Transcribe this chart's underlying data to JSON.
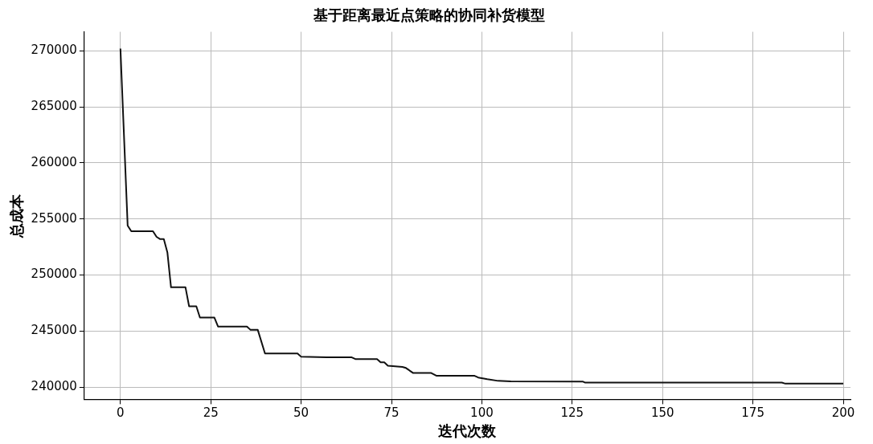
{
  "chart_data": {
    "type": "line",
    "title": "基于距离最近点策略的协同补货模型",
    "xlabel": "迭代次数",
    "ylabel": "总成本",
    "series": [
      {
        "color": "#111111",
        "x": [
          0,
          2,
          3,
          9,
          10,
          11,
          12,
          13,
          14,
          18,
          19,
          21,
          22,
          26,
          27,
          35,
          36,
          38,
          40,
          49,
          50,
          57,
          64,
          65,
          71,
          72,
          73,
          74,
          78,
          79,
          81,
          86,
          87.5,
          98,
          99,
          101.5,
          104.5,
          108,
          128,
          128.5,
          183,
          184,
          200
        ],
        "values": [
          270200,
          254400,
          253900,
          253900,
          253400,
          253200,
          253200,
          252000,
          248900,
          248900,
          247200,
          247200,
          246200,
          246200,
          245400,
          245400,
          245100,
          245100,
          243000,
          243000,
          242700,
          242650,
          242650,
          242500,
          242500,
          242200,
          242200,
          241900,
          241800,
          241700,
          241250,
          241250,
          241000,
          241000,
          240850,
          240700,
          240550,
          240500,
          240480,
          240400,
          240400,
          240300,
          240300
        ]
      }
    ],
    "xlim": [
      -10,
      202
    ],
    "xticks": [
      0,
      25,
      50,
      75,
      100,
      125,
      150,
      175,
      200
    ],
    "ylim": [
      238900,
      271700
    ],
    "yticks": [
      240000,
      245000,
      250000,
      255000,
      260000,
      265000,
      270000
    ],
    "grid": true,
    "legend": false,
    "marker": "none",
    "line_style": "solid"
  }
}
